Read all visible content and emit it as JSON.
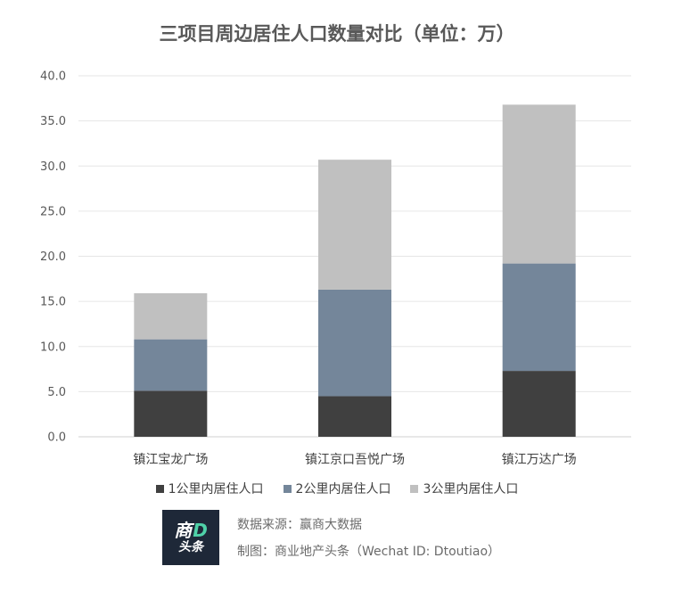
{
  "chart_data": {
    "type": "bar",
    "stacked": true,
    "title": "三项目周边居住人口数量对比（单位：万）",
    "categories": [
      "镇江宝龙广场",
      "镇江京口吾悦广场",
      "镇江万达广场"
    ],
    "series": [
      {
        "name": "1公里内居住人口",
        "color": "#404040",
        "values": [
          5.1,
          4.5,
          7.3
        ]
      },
      {
        "name": "2公里内居住人口",
        "color": "#74869a",
        "values": [
          5.7,
          11.8,
          11.9
        ]
      },
      {
        "name": "3公里内居住人口",
        "color": "#c0c0c0",
        "values": [
          5.1,
          14.4,
          17.6
        ]
      }
    ],
    "y_ticks": [
      "0.0",
      "5.0",
      "10.0",
      "15.0",
      "20.0",
      "25.0",
      "30.0",
      "35.0",
      "40.0"
    ],
    "ylim": [
      0,
      40
    ],
    "grid": true,
    "legend_position": "bottom"
  },
  "logo": {
    "line1": "商",
    "line1_accent": "D",
    "line2": "头条"
  },
  "source": {
    "line1": "数据来源：赢商大数据",
    "line2": "制图：商业地产头条（Wechat ID: Dtoutiao）"
  }
}
